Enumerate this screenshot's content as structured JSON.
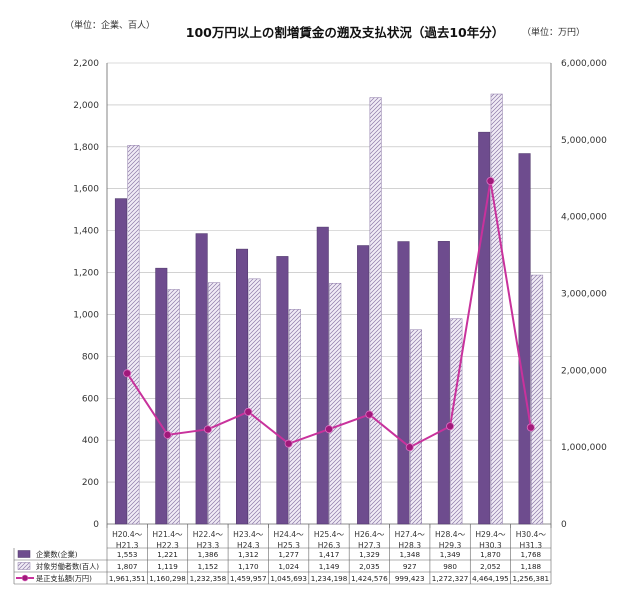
{
  "chart_data": {
    "type": "bar+line",
    "title": "100万円以上の割増賃金の遡及支払状況（過去10年分）",
    "left_axis_note": "（単位：企業、百人）",
    "right_axis_note": "（単位：万円）",
    "categories": [
      [
        "H20.4～",
        "H21.3"
      ],
      [
        "H21.4～",
        "H22.3"
      ],
      [
        "H22.4～",
        "H23.3"
      ],
      [
        "H23.4～",
        "H24.3"
      ],
      [
        "H24.4～",
        "H25.3"
      ],
      [
        "H25.4～",
        "H26.3"
      ],
      [
        "H26.4～",
        "H27.3"
      ],
      [
        "H27.4～",
        "H28.3"
      ],
      [
        "H28.4～",
        "H29.3"
      ],
      [
        "H29.4～",
        "H30.3"
      ],
      [
        "H30.4～",
        "H31.3"
      ]
    ],
    "y_left": {
      "min": 0,
      "max": 2200,
      "step": 200
    },
    "y_right": {
      "min": 0,
      "max": 6000000,
      "step": 1000000
    },
    "grid": true,
    "legend": "table-bottom",
    "series": [
      {
        "name": "企業数(企業)",
        "kind": "bar",
        "axis": "left",
        "color": "#6e4c8e",
        "values": [
          1553,
          1221,
          1386,
          1312,
          1277,
          1417,
          1329,
          1348,
          1349,
          1870,
          1768
        ],
        "labels": [
          "1,553",
          "1,221",
          "1,386",
          "1,312",
          "1,277",
          "1,417",
          "1,329",
          "1,348",
          "1,349",
          "1,870",
          "1,768"
        ]
      },
      {
        "name": "対象労働者数(百人)",
        "kind": "bar",
        "axis": "left",
        "color": "#c8bcd8",
        "values": [
          1807,
          1119,
          1152,
          1170,
          1024,
          1149,
          2035,
          927,
          980,
          2052,
          1188
        ],
        "labels": [
          "1,807",
          "1,119",
          "1,152",
          "1,170",
          "1,024",
          "1,149",
          "2,035",
          "927",
          "980",
          "2,052",
          "1,188"
        ]
      },
      {
        "name": "是正支払額(万円)",
        "kind": "line",
        "axis": "right",
        "color": "#c8329c",
        "values": [
          1961351,
          1160298,
          1232358,
          1459957,
          1045693,
          1234198,
          1424576,
          999423,
          1272327,
          4464195,
          1256381
        ],
        "labels": [
          "1,961,351",
          "1,160,298",
          "1,232,358",
          "1,459,957",
          "1,045,693",
          "1,234,198",
          "1,424,576",
          "999,423",
          "1,272,327",
          "4,464,195",
          "1,256,381"
        ]
      }
    ]
  }
}
